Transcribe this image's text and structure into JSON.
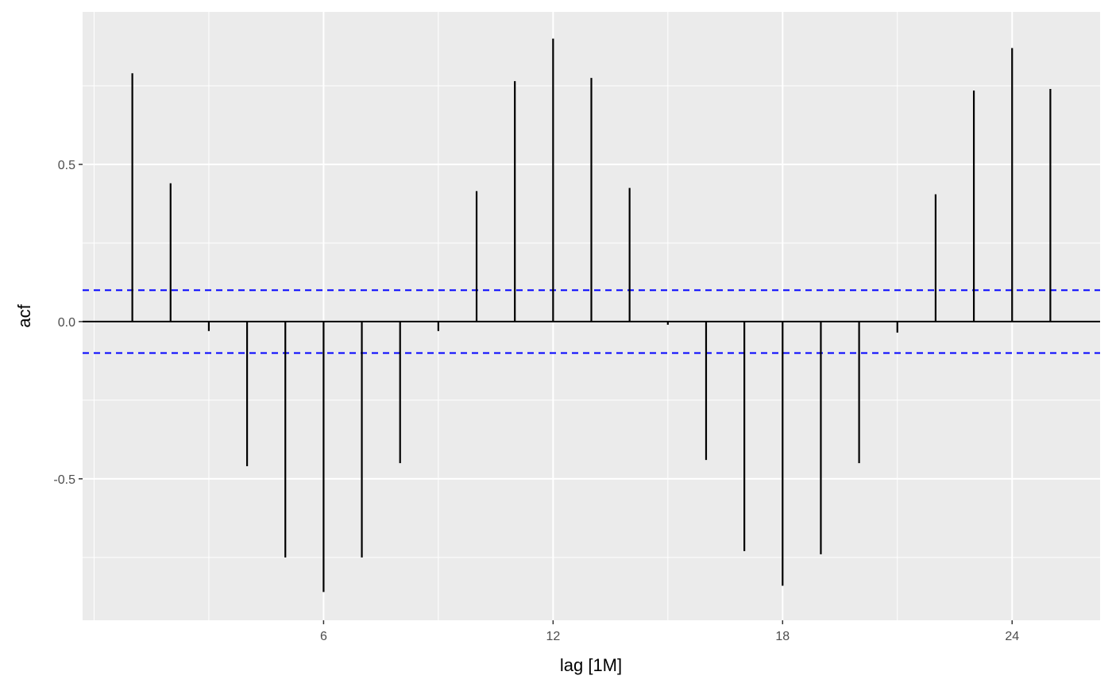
{
  "chart_data": {
    "type": "bar",
    "xlabel": "lag [1M]",
    "ylabel": "acf",
    "x": [
      1,
      2,
      3,
      4,
      5,
      6,
      7,
      8,
      9,
      10,
      11,
      12,
      13,
      14,
      15,
      16,
      17,
      18,
      19,
      20,
      21,
      22,
      23,
      24,
      25
    ],
    "values": [
      0.79,
      0.44,
      -0.03,
      -0.46,
      -0.75,
      -0.86,
      -0.75,
      -0.45,
      -0.03,
      0.415,
      0.765,
      0.9,
      0.775,
      0.425,
      -0.01,
      -0.44,
      -0.73,
      -0.84,
      -0.74,
      -0.45,
      -0.035,
      0.405,
      0.735,
      0.87,
      0.74
    ],
    "confidence_bounds": [
      0.1,
      -0.1
    ],
    "xlim": [
      -0.3,
      26.3
    ],
    "ylim": [
      -0.95,
      0.985
    ],
    "x_ticks": [
      6,
      12,
      18,
      24
    ],
    "x_tick_labels": [
      "6",
      "12",
      "18",
      "24"
    ],
    "y_ticks": [
      0.5,
      0.0,
      -0.5
    ],
    "y_tick_labels": [
      "0.5",
      "0.0",
      "-0.5"
    ],
    "x_minor_ticks": [
      0,
      3,
      9,
      15,
      21
    ],
    "y_minor_ticks": [
      0.75,
      0.25,
      -0.25,
      -0.75
    ],
    "grid": true,
    "colors": {
      "panel": "#ebebeb",
      "grid": "#ffffff",
      "bars": "#000000",
      "bounds": "#0000ff",
      "tick_label": "#4d4d4d"
    }
  }
}
